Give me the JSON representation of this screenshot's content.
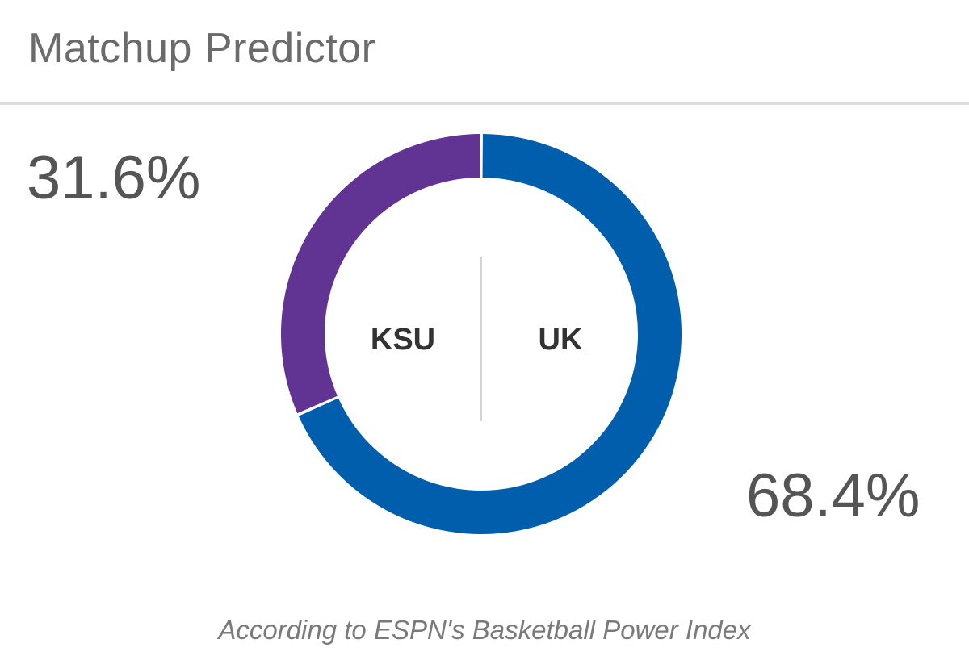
{
  "header": {
    "title": "Matchup Predictor"
  },
  "chart_data": {
    "type": "pie",
    "variant": "donut",
    "title": "Matchup Predictor",
    "categories": [
      "KSU",
      "UK"
    ],
    "values": [
      31.6,
      68.4
    ],
    "labels": [
      "31.6%",
      "68.4%"
    ],
    "colors": [
      "#613393",
      "#005EAD"
    ],
    "center_labels": [
      "KSU",
      "UK"
    ]
  },
  "footer": {
    "source": "According to ESPN's Basketball Power Index"
  }
}
